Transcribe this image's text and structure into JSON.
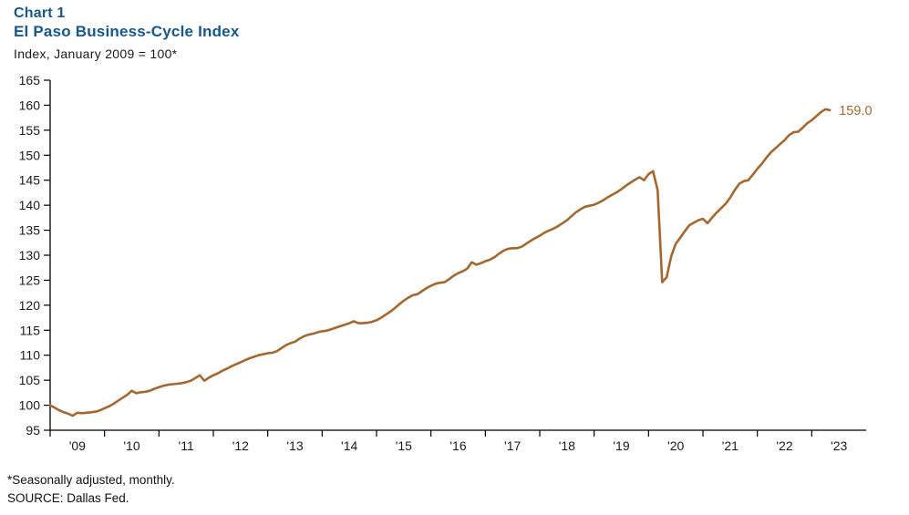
{
  "header": {
    "chart_number": "Chart 1",
    "title": "El Paso Business-Cycle Index",
    "subtitle": "Index, January 2009 = 100*"
  },
  "footer": {
    "note": "*Seasonally adjusted, monthly.",
    "source": "SOURCE: Dallas Fed."
  },
  "colors": {
    "title_blue": "#16578C",
    "line_brown": "#A5672E",
    "axis": "#000000",
    "tick_text": "#1a1a1a"
  },
  "chart_data": {
    "type": "line",
    "title": "El Paso Business-Cycle Index",
    "subtitle": "Index, January 2009 = 100*",
    "xlabel": "",
    "ylabel": "Index, January 2009 = 100",
    "ylim": [
      95,
      165
    ],
    "y_ticks": [
      95,
      100,
      105,
      110,
      115,
      120,
      125,
      130,
      135,
      140,
      145,
      150,
      155,
      160,
      165
    ],
    "x_tick_labels": [
      "'09",
      "'10",
      "'11",
      "'12",
      "'13",
      "'14",
      "'15",
      "'16",
      "'17",
      "'18",
      "'19",
      "'20",
      "'21",
      "'22",
      "'23"
    ],
    "x_axis": {
      "start_year": 2009,
      "end_year": 2024,
      "span_years": 15
    },
    "grid": false,
    "legend": false,
    "end_label": "159.0",
    "series": [
      {
        "name": "El Paso Business-Cycle Index",
        "frequency": "monthly",
        "start_month": "2009-01",
        "end_month": "2023-05",
        "values": [
          100.0,
          99.5,
          99.0,
          98.6,
          98.3,
          97.9,
          98.5,
          98.4,
          98.5,
          98.6,
          98.7,
          99.0,
          99.4,
          99.8,
          100.3,
          100.9,
          101.5,
          102.1,
          102.9,
          102.4,
          102.6,
          102.7,
          102.9,
          103.3,
          103.6,
          103.9,
          104.1,
          104.2,
          104.3,
          104.4,
          104.6,
          104.9,
          105.4,
          106.0,
          104.9,
          105.5,
          106.0,
          106.4,
          106.9,
          107.3,
          107.8,
          108.2,
          108.6,
          109.0,
          109.4,
          109.7,
          110.0,
          110.2,
          110.4,
          110.5,
          110.8,
          111.4,
          112.0,
          112.4,
          112.7,
          113.3,
          113.8,
          114.1,
          114.3,
          114.6,
          114.8,
          114.9,
          115.2,
          115.5,
          115.8,
          116.1,
          116.4,
          116.8,
          116.4,
          116.4,
          116.5,
          116.7,
          117.0,
          117.5,
          118.1,
          118.7,
          119.4,
          120.2,
          120.9,
          121.5,
          122.0,
          122.2,
          122.8,
          123.4,
          123.9,
          124.3,
          124.5,
          124.6,
          125.2,
          125.9,
          126.4,
          126.8,
          127.3,
          128.6,
          128.1,
          128.4,
          128.8,
          129.1,
          129.6,
          130.3,
          130.9,
          131.3,
          131.4,
          131.4,
          131.7,
          132.3,
          132.9,
          133.4,
          133.9,
          134.5,
          134.9,
          135.3,
          135.8,
          136.4,
          137.0,
          137.8,
          138.6,
          139.2,
          139.7,
          139.9,
          140.1,
          140.5,
          141.0,
          141.6,
          142.1,
          142.6,
          143.2,
          143.9,
          144.5,
          145.1,
          145.6,
          145.0,
          146.2,
          146.8,
          143.0,
          124.6,
          125.6,
          129.8,
          132.3,
          133.5,
          134.8,
          136.0,
          136.5,
          137.0,
          137.3,
          136.4,
          137.5,
          138.5,
          139.4,
          140.3,
          141.5,
          143.0,
          144.3,
          144.8,
          145.0,
          146.1,
          147.3,
          148.3,
          149.5,
          150.6,
          151.4,
          152.2,
          153.0,
          154.0,
          154.6,
          154.7,
          155.5,
          156.4,
          157.0,
          157.8,
          158.6,
          159.2,
          159.0
        ]
      }
    ]
  }
}
